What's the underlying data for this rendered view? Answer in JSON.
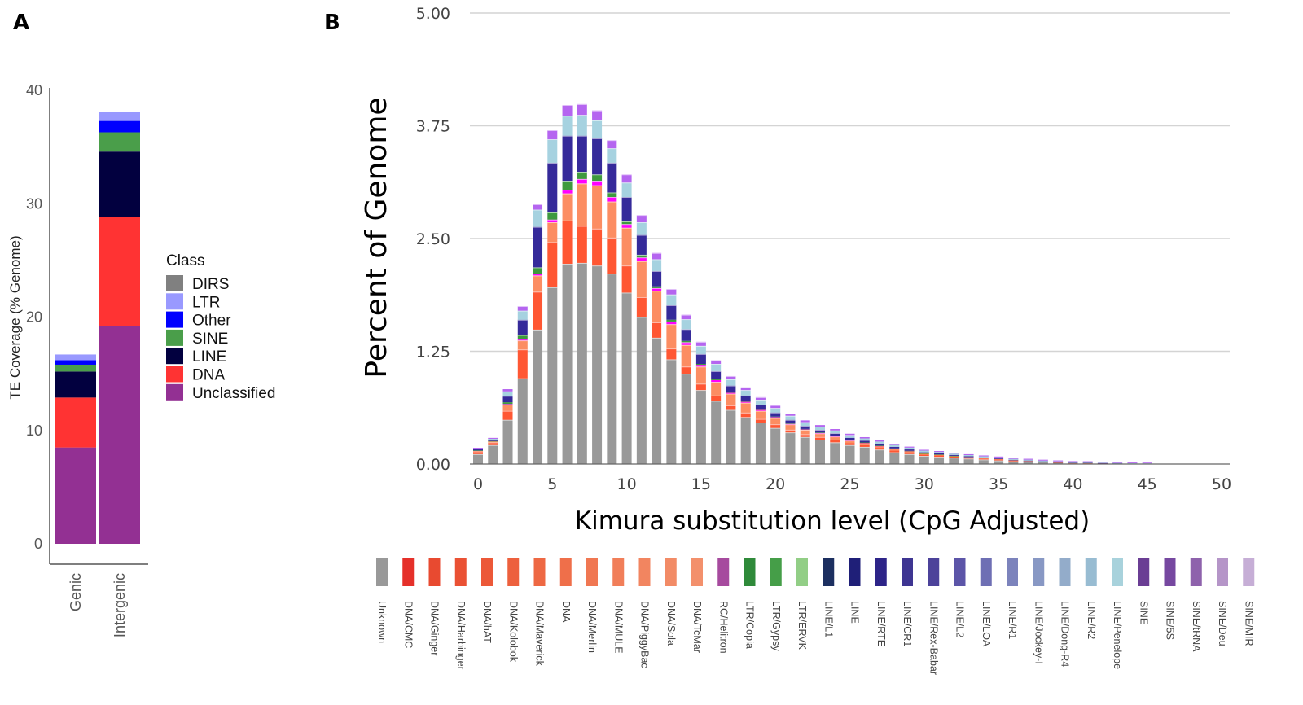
{
  "panels": {
    "a_label": "A",
    "b_label": "B"
  },
  "chart_data": [
    {
      "id": "panel-a",
      "type": "bar",
      "stacked": true,
      "title": "",
      "xlabel": "",
      "ylabel": "TE Coverage (% Genome)",
      "ylim": [
        0,
        40
      ],
      "yticks": [
        0,
        10,
        20,
        30,
        40
      ],
      "categories": [
        "Genic",
        "Intergenic"
      ],
      "legend_title": "Class",
      "legend_position": "right",
      "legend": [
        {
          "name": "DIRS",
          "color": "#808080"
        },
        {
          "name": "LTR",
          "color": "#9999ff"
        },
        {
          "name": "Other",
          "color": "#0000ff"
        },
        {
          "name": "SINE",
          "color": "#4a9e4a"
        },
        {
          "name": "LINE",
          "color": "#02003f"
        },
        {
          "name": "DNA",
          "color": "#ff3333"
        },
        {
          "name": "Unclassified",
          "color": "#933093"
        }
      ],
      "stack_order": [
        "Unclassified",
        "DNA",
        "LINE",
        "SINE",
        "Other",
        "LTR",
        "DIRS"
      ],
      "series": [
        {
          "name": "Unclassified",
          "values": [
            8.5,
            19.2
          ]
        },
        {
          "name": "DNA",
          "values": [
            4.4,
            9.6
          ]
        },
        {
          "name": "LINE",
          "values": [
            2.3,
            5.8
          ]
        },
        {
          "name": "SINE",
          "values": [
            0.6,
            1.7
          ]
        },
        {
          "name": "Other",
          "values": [
            0.4,
            1.0
          ]
        },
        {
          "name": "LTR",
          "values": [
            0.5,
            0.8
          ]
        },
        {
          "name": "DIRS",
          "values": [
            0.0,
            0.0
          ]
        }
      ]
    },
    {
      "id": "panel-b",
      "type": "bar",
      "stacked": true,
      "title": "",
      "xlabel": "Kimura substitution level (CpG Adjusted)",
      "ylabel": "Percent of Genome",
      "ylim": [
        0,
        5
      ],
      "yticks": [
        "0.00",
        "1.25",
        "2.50",
        "3.75",
        "5.00"
      ],
      "xlim": [
        0,
        50
      ],
      "xticks": [
        0,
        5,
        10,
        15,
        20,
        25,
        30,
        35,
        40,
        45,
        50
      ],
      "grid": true,
      "legend_position": "bottom",
      "group_colors": {
        "Unknown": "#999999",
        "DNA_dark": "#ff5733",
        "DNA_light": "#fc8d62",
        "RC": "#ff00ff",
        "LTR": "#3e9a3e",
        "LINE_dark": "#352a9a",
        "LINE_light": "#a6d2e0",
        "SINE": "#b565f0"
      },
      "group_order": [
        "Unknown",
        "DNA_dark",
        "DNA_light",
        "RC",
        "LTR",
        "LINE_dark",
        "LINE_light",
        "SINE"
      ],
      "x": [
        0,
        1,
        2,
        3,
        4,
        5,
        6,
        7,
        8,
        9,
        10,
        11,
        12,
        13,
        14,
        15,
        16,
        17,
        18,
        19,
        20,
        21,
        22,
        23,
        24,
        25,
        26,
        27,
        28,
        29,
        30,
        31,
        32,
        33,
        34,
        35,
        36,
        37,
        38,
        39,
        40,
        41,
        42,
        43,
        44,
        45,
        46,
        47,
        48,
        49
      ],
      "series": [
        {
          "name": "Unknown",
          "values": [
            0.11,
            0.21,
            0.49,
            0.95,
            1.49,
            1.96,
            2.22,
            2.23,
            2.2,
            2.11,
            1.9,
            1.63,
            1.4,
            1.16,
            1.0,
            0.82,
            0.7,
            0.6,
            0.52,
            0.46,
            0.4,
            0.35,
            0.3,
            0.27,
            0.24,
            0.21,
            0.19,
            0.16,
            0.13,
            0.11,
            0.09,
            0.08,
            0.07,
            0.06,
            0.05,
            0.04,
            0.03,
            0.025,
            0.02,
            0.015,
            0.01,
            0.01,
            0.008,
            0.006,
            0.005,
            0.004,
            0.002,
            0.001,
            0.001,
            0.001
          ]
        },
        {
          "name": "DNA_dark",
          "values": [
            0.03,
            0.03,
            0.1,
            0.32,
            0.42,
            0.5,
            0.48,
            0.41,
            0.41,
            0.4,
            0.3,
            0.22,
            0.17,
            0.12,
            0.08,
            0.07,
            0.06,
            0.05,
            0.05,
            0.04,
            0.04,
            0.03,
            0.03,
            0.03,
            0.03,
            0.02,
            0.02,
            0.02,
            0.02,
            0.02,
            0.015,
            0.015,
            0.012,
            0.01,
            0.01,
            0.01,
            0.008,
            0.006,
            0.004,
            0.003,
            0.002,
            0.002,
            0.001,
            0,
            0,
            0,
            0,
            0,
            0,
            0
          ]
        },
        {
          "name": "DNA_light",
          "values": [
            0.005,
            0.01,
            0.07,
            0.1,
            0.18,
            0.22,
            0.3,
            0.47,
            0.48,
            0.4,
            0.42,
            0.4,
            0.35,
            0.27,
            0.24,
            0.19,
            0.15,
            0.13,
            0.11,
            0.09,
            0.07,
            0.06,
            0.05,
            0.04,
            0.035,
            0.03,
            0.025,
            0.02,
            0.02,
            0.015,
            0.012,
            0.01,
            0.008,
            0.006,
            0.005,
            0.004,
            0.003,
            0.002,
            0.001,
            0,
            0,
            0,
            0,
            0,
            0,
            0,
            0,
            0,
            0,
            0
          ]
        },
        {
          "name": "RC",
          "values": [
            0,
            0,
            0.005,
            0.01,
            0.02,
            0.03,
            0.04,
            0.05,
            0.05,
            0.05,
            0.04,
            0.04,
            0.03,
            0.03,
            0.03,
            0.02,
            0.02,
            0.01,
            0.01,
            0.01,
            0.01,
            0.005,
            0.005,
            0.005,
            0.004,
            0.003,
            0.002,
            0.002,
            0.001,
            0.001,
            0,
            0,
            0,
            0,
            0,
            0,
            0,
            0,
            0,
            0,
            0,
            0,
            0,
            0,
            0,
            0,
            0,
            0,
            0,
            0
          ]
        },
        {
          "name": "LTR",
          "values": [
            0.005,
            0.005,
            0.02,
            0.05,
            0.07,
            0.08,
            0.1,
            0.08,
            0.07,
            0.05,
            0.03,
            0.03,
            0.02,
            0.02,
            0.015,
            0.01,
            0.01,
            0.01,
            0.01,
            0.008,
            0.006,
            0.005,
            0.004,
            0.004,
            0.003,
            0.003,
            0.002,
            0.002,
            0.002,
            0.001,
            0.001,
            0.001,
            0.001,
            0,
            0,
            0,
            0,
            0,
            0,
            0,
            0,
            0,
            0,
            0,
            0,
            0,
            0,
            0,
            0,
            0
          ]
        },
        {
          "name": "LINE_dark",
          "values": [
            0.015,
            0.015,
            0.07,
            0.17,
            0.45,
            0.55,
            0.5,
            0.4,
            0.4,
            0.33,
            0.27,
            0.22,
            0.17,
            0.16,
            0.13,
            0.11,
            0.09,
            0.07,
            0.06,
            0.05,
            0.045,
            0.04,
            0.035,
            0.03,
            0.03,
            0.025,
            0.02,
            0.02,
            0.018,
            0.015,
            0.012,
            0.012,
            0.01,
            0.01,
            0.008,
            0.008,
            0.006,
            0.006,
            0.005,
            0.004,
            0.003,
            0.003,
            0.002,
            0.002,
            0.001,
            0.001,
            0,
            0,
            0,
            0
          ]
        },
        {
          "name": "LINE_light",
          "values": [
            0.005,
            0.01,
            0.05,
            0.1,
            0.19,
            0.26,
            0.22,
            0.23,
            0.2,
            0.16,
            0.16,
            0.14,
            0.13,
            0.12,
            0.11,
            0.09,
            0.08,
            0.07,
            0.06,
            0.055,
            0.05,
            0.045,
            0.04,
            0.035,
            0.03,
            0.03,
            0.025,
            0.025,
            0.02,
            0.02,
            0.018,
            0.016,
            0.014,
            0.013,
            0.012,
            0.011,
            0.01,
            0.009,
            0.008,
            0.008,
            0.007,
            0.006,
            0.005,
            0.004,
            0.003,
            0.003,
            0.001,
            0.001,
            0,
            0
          ]
        },
        {
          "name": "SINE",
          "values": [
            0.01,
            0.01,
            0.025,
            0.05,
            0.06,
            0.1,
            0.12,
            0.12,
            0.11,
            0.09,
            0.09,
            0.08,
            0.07,
            0.06,
            0.05,
            0.045,
            0.04,
            0.035,
            0.03,
            0.028,
            0.025,
            0.022,
            0.02,
            0.018,
            0.016,
            0.015,
            0.014,
            0.013,
            0.012,
            0.011,
            0.01,
            0.01,
            0.01,
            0.01,
            0.01,
            0.01,
            0.01,
            0.01,
            0.01,
            0.01,
            0.01,
            0.01,
            0.008,
            0.008,
            0.008,
            0.008,
            0.001,
            0.001,
            0.001,
            0.001
          ]
        }
      ],
      "legend": [
        {
          "name": "Unknown",
          "color": "#999999"
        },
        {
          "name": "DNA/CMC",
          "color": "#e5302a"
        },
        {
          "name": "DNA/Ginger",
          "color": "#e84a30"
        },
        {
          "name": "DNA/Harbinger",
          "color": "#ea5134"
        },
        {
          "name": "DNA/hAT",
          "color": "#ec5838"
        },
        {
          "name": "DNA/Kolobok",
          "color": "#ed603d"
        },
        {
          "name": "DNA/Maverick",
          "color": "#ee6843"
        },
        {
          "name": "DNA",
          "color": "#ef6f4a"
        },
        {
          "name": "DNA/Merlin",
          "color": "#f07752"
        },
        {
          "name": "DNA/MULE",
          "color": "#f17e59"
        },
        {
          "name": "DNA/PiggyBac",
          "color": "#f28560"
        },
        {
          "name": "DNA/Sola",
          "color": "#f28b66"
        },
        {
          "name": "DNA/TcMar",
          "color": "#f3906c"
        },
        {
          "name": "RC/Helitron",
          "color": "#a64a9e"
        },
        {
          "name": "LTR/Copia",
          "color": "#2f8a3a"
        },
        {
          "name": "LTR/Gypsy",
          "color": "#459e48"
        },
        {
          "name": "LTR/ERVK",
          "color": "#92ce86"
        },
        {
          "name": "LINE/L1",
          "color": "#1c2f60"
        },
        {
          "name": "LINE",
          "color": "#1f1f78"
        },
        {
          "name": "LINE/RTE",
          "color": "#2d2488"
        },
        {
          "name": "LINE/CR1",
          "color": "#3e3592"
        },
        {
          "name": "LINE/Rex-Babar",
          "color": "#4c429a"
        },
        {
          "name": "LINE/L2",
          "color": "#5c55a8"
        },
        {
          "name": "LINE/LOA",
          "color": "#6e6fb4"
        },
        {
          "name": "LINE/R1",
          "color": "#7c83bc"
        },
        {
          "name": "LINE/Jockey-I",
          "color": "#8898c4"
        },
        {
          "name": "LINE/Dong-R4",
          "color": "#93acca"
        },
        {
          "name": "LINE/R2",
          "color": "#98bcd2"
        },
        {
          "name": "LINE/Penelope",
          "color": "#a8d2dc"
        },
        {
          "name": "SINE",
          "color": "#6a3d94"
        },
        {
          "name": "SINE/5S",
          "color": "#7648a0"
        },
        {
          "name": "SINE/tRNA",
          "color": "#8e62ac"
        },
        {
          "name": "SINE/Deu",
          "color": "#b595c8"
        },
        {
          "name": "SINE/MIR",
          "color": "#c6aed6"
        }
      ]
    }
  ]
}
